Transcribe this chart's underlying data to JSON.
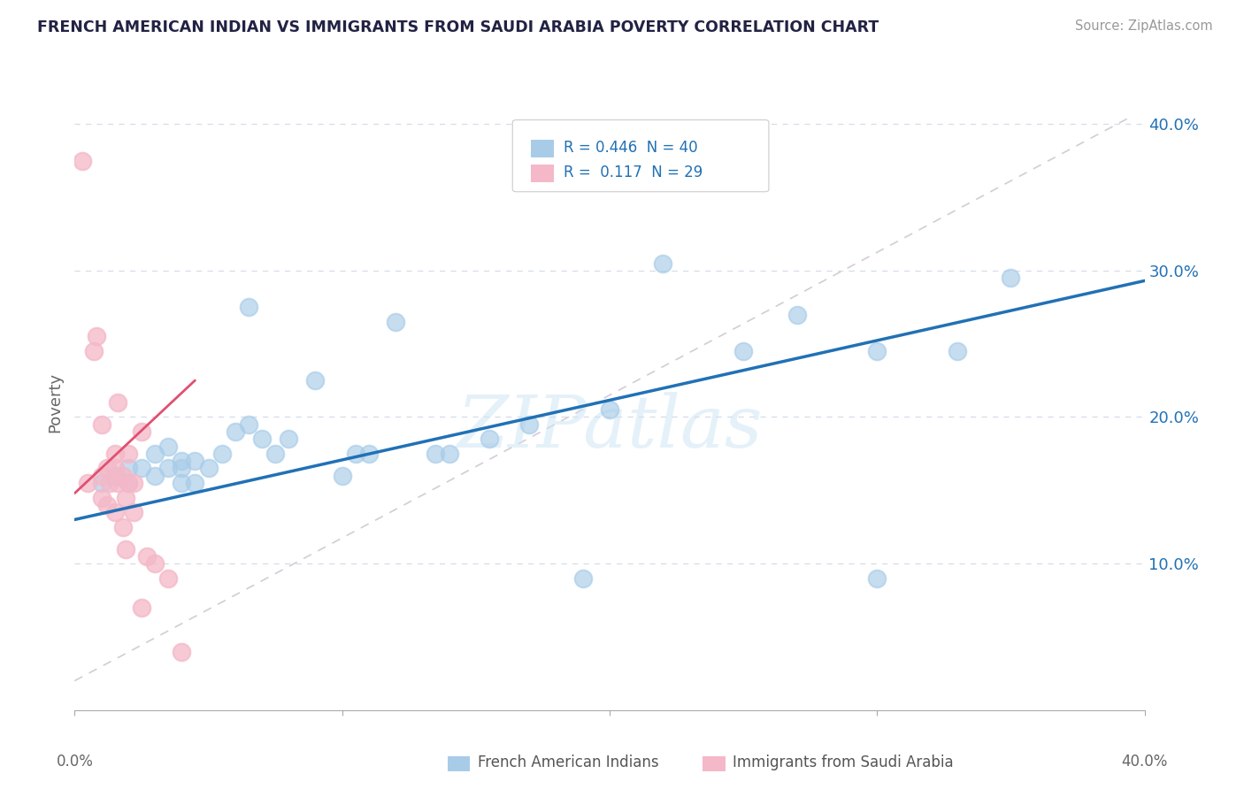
{
  "title": "FRENCH AMERICAN INDIAN VS IMMIGRANTS FROM SAUDI ARABIA POVERTY CORRELATION CHART",
  "source": "Source: ZipAtlas.com",
  "ylabel": "Poverty",
  "xlim": [
    0.0,
    0.4
  ],
  "ylim": [
    0.0,
    0.42
  ],
  "ytick_vals": [
    0.1,
    0.2,
    0.3,
    0.4
  ],
  "ytick_labels": [
    "10.0%",
    "20.0%",
    "30.0%",
    "40.0%"
  ],
  "blue_color": "#a8cce8",
  "pink_color": "#f4b8c8",
  "line_blue": "#2171b5",
  "line_pink": "#e05070",
  "line_dashed_color": "#c8c0cc",
  "watermark": "ZIPatlas",
  "blue_scatter_x": [
    0.01,
    0.015,
    0.02,
    0.02,
    0.025,
    0.03,
    0.03,
    0.035,
    0.035,
    0.04,
    0.04,
    0.04,
    0.045,
    0.045,
    0.05,
    0.055,
    0.06,
    0.065,
    0.065,
    0.07,
    0.075,
    0.08,
    0.09,
    0.1,
    0.105,
    0.11,
    0.12,
    0.135,
    0.14,
    0.155,
    0.17,
    0.19,
    0.22,
    0.25,
    0.27,
    0.3,
    0.35,
    0.2,
    0.3,
    0.33
  ],
  "blue_scatter_y": [
    0.155,
    0.16,
    0.155,
    0.165,
    0.165,
    0.16,
    0.175,
    0.165,
    0.18,
    0.155,
    0.165,
    0.17,
    0.17,
    0.155,
    0.165,
    0.175,
    0.19,
    0.275,
    0.195,
    0.185,
    0.175,
    0.185,
    0.225,
    0.16,
    0.175,
    0.175,
    0.265,
    0.175,
    0.175,
    0.185,
    0.195,
    0.09,
    0.305,
    0.245,
    0.27,
    0.245,
    0.295,
    0.205,
    0.09,
    0.245
  ],
  "pink_scatter_x": [
    0.003,
    0.005,
    0.007,
    0.008,
    0.01,
    0.01,
    0.01,
    0.012,
    0.012,
    0.013,
    0.015,
    0.015,
    0.015,
    0.016,
    0.016,
    0.018,
    0.018,
    0.019,
    0.019,
    0.02,
    0.02,
    0.022,
    0.022,
    0.025,
    0.025,
    0.027,
    0.03,
    0.035,
    0.04
  ],
  "pink_scatter_y": [
    0.375,
    0.155,
    0.245,
    0.255,
    0.195,
    0.16,
    0.145,
    0.165,
    0.14,
    0.155,
    0.175,
    0.165,
    0.135,
    0.21,
    0.155,
    0.16,
    0.125,
    0.145,
    0.11,
    0.175,
    0.155,
    0.155,
    0.135,
    0.19,
    0.07,
    0.105,
    0.1,
    0.09,
    0.04
  ],
  "blue_trendline_x": [
    0.0,
    0.4
  ],
  "blue_trendline_y": [
    0.13,
    0.293
  ],
  "pink_trendline_x": [
    0.0,
    0.045
  ],
  "pink_trendline_y": [
    0.148,
    0.225
  ],
  "dashed_line_x": [
    0.0,
    0.395
  ],
  "dashed_line_y": [
    0.02,
    0.405
  ]
}
